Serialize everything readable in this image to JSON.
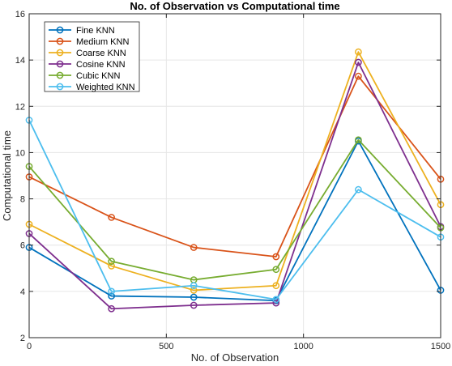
{
  "chart_data": {
    "type": "line",
    "title": "No. of Observation vs Computational time",
    "xlabel": "No. of Observation",
    "ylabel": "Computational time",
    "x": [
      0,
      300,
      600,
      900,
      1200,
      1500
    ],
    "xlim": [
      0,
      1500
    ],
    "ylim": [
      2,
      16
    ],
    "xticks": [
      0,
      500,
      1000,
      1500
    ],
    "yticks": [
      2,
      4,
      6,
      8,
      10,
      12,
      14,
      16
    ],
    "grid": true,
    "legend_position": "top-left",
    "series": [
      {
        "name": "Fine KNN",
        "color": "#0072BD",
        "values": [
          5.9,
          3.8,
          3.75,
          3.6,
          10.5,
          4.05
        ]
      },
      {
        "name": "Medium KNN",
        "color": "#D95319",
        "values": [
          8.95,
          7.2,
          5.9,
          5.5,
          13.3,
          8.85
        ]
      },
      {
        "name": "Coarse KNN",
        "color": "#EDB120",
        "values": [
          6.9,
          5.1,
          4.05,
          4.25,
          14.35,
          7.75
        ]
      },
      {
        "name": "Cosine KNN",
        "color": "#7E2F8E",
        "values": [
          6.5,
          3.25,
          3.4,
          3.5,
          13.9,
          6.8
        ]
      },
      {
        "name": "Cubic KNN",
        "color": "#77AC30",
        "values": [
          9.4,
          5.3,
          4.5,
          4.95,
          10.55,
          6.75
        ]
      },
      {
        "name": "Weighted KNN",
        "color": "#4DBEEE",
        "values": [
          11.4,
          4.0,
          4.25,
          3.65,
          8.4,
          6.35
        ]
      }
    ]
  }
}
